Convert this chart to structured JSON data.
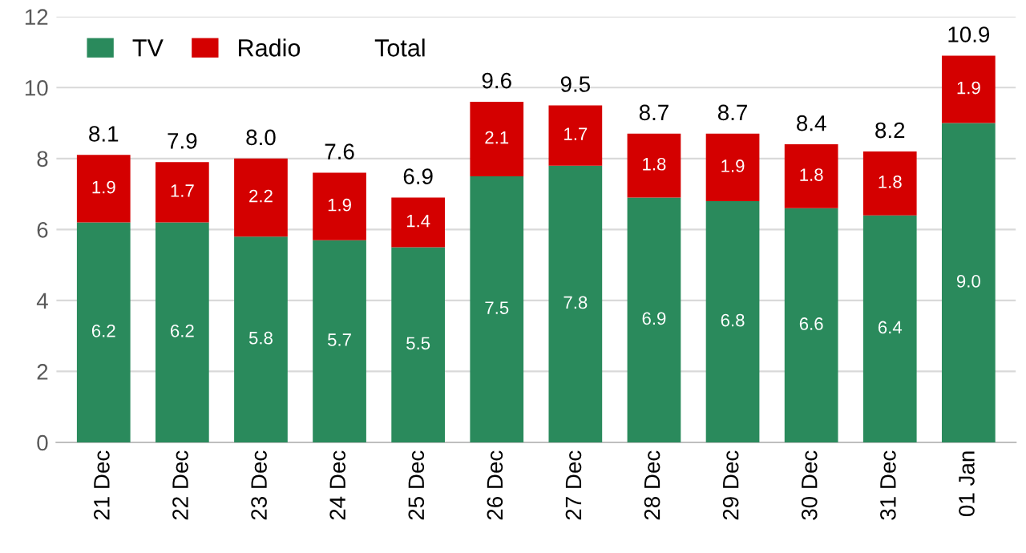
{
  "chart_data": {
    "type": "bar",
    "stacked": true,
    "categories": [
      "21 Dec",
      "22 Dec",
      "23 Dec",
      "24 Dec",
      "25 Dec",
      "26 Dec",
      "27 Dec",
      "28 Dec",
      "29 Dec",
      "30 Dec",
      "31 Dec",
      "01 Jan"
    ],
    "series": [
      {
        "name": "TV",
        "color": "#2a8a5c",
        "values": [
          6.2,
          6.2,
          5.8,
          5.7,
          5.5,
          7.5,
          7.8,
          6.9,
          6.8,
          6.6,
          6.4,
          9.0
        ],
        "value_labels": [
          "6.2",
          "6.2",
          "5.8",
          "5.7",
          "5.5",
          "7.5",
          "7.8",
          "6.9",
          "6.8",
          "6.6",
          "6.4",
          "9.0"
        ]
      },
      {
        "name": "Radio",
        "color": "#d40000",
        "values": [
          1.9,
          1.7,
          2.2,
          1.9,
          1.4,
          2.1,
          1.7,
          1.8,
          1.9,
          1.8,
          1.8,
          1.9
        ],
        "value_labels": [
          "1.9",
          "1.7",
          "2.2",
          "1.9",
          "1.4",
          "2.1",
          "1.7",
          "1.8",
          "1.9",
          "1.8",
          "1.8",
          "1.9"
        ]
      }
    ],
    "totals": [
      "8.1",
      "7.9",
      "8.0",
      "7.6",
      "6.9",
      "9.6",
      "9.5",
      "8.7",
      "8.7",
      "8.4",
      "8.2",
      "10.9"
    ],
    "annotations": [
      "Total"
    ],
    "ylim": [
      0,
      12
    ],
    "yticks": [
      0,
      2,
      4,
      6,
      8,
      10,
      12
    ],
    "grid": "y",
    "legend": "top left"
  }
}
